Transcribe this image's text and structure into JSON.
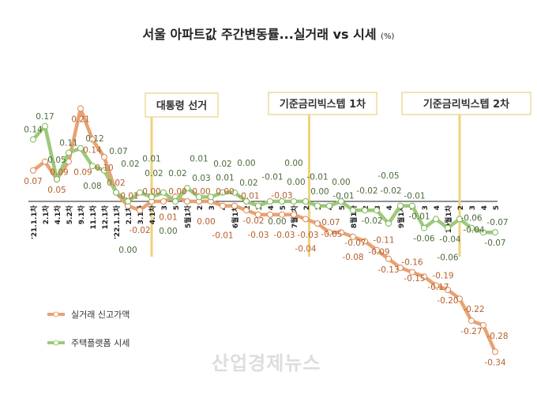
{
  "chart_data": {
    "type": "line",
    "title": "서울 아파트값 주간변동률...실거래 vs 시세",
    "unit": "(%)",
    "categories": [
      "'21.1.1차",
      "2.1차",
      "4.1차",
      "5.2차",
      "9.1차",
      "11.1차",
      "12.1차",
      "'22.1.1차",
      "2.1차",
      "3.1차",
      "4.1차",
      "3",
      "5",
      "5월1차",
      "2",
      "3",
      "4",
      "6월1차",
      "2",
      "3",
      "4",
      "5",
      "7월1차",
      "2",
      "3",
      "4",
      "5",
      "8월1차",
      "2",
      "3",
      "4",
      "9월1차",
      "2",
      "3",
      "4",
      "10월1차",
      "2",
      "3",
      "4",
      "5"
    ],
    "series": [
      {
        "name": "실거래 신고가액",
        "color": "#e9a272",
        "values": [
          0.07,
          0.09,
          0.05,
          0.09,
          0.21,
          0.14,
          0.1,
          0.02,
          -0.01,
          -0.02,
          0.0,
          0.0,
          0.01,
          0.0,
          0.0,
          0.0,
          -0.01,
          -0.01,
          -0.02,
          -0.03,
          -0.03,
          -0.03,
          -0.03,
          -0.04,
          -0.05,
          -0.07,
          -0.07,
          -0.08,
          -0.09,
          -0.11,
          -0.13,
          -0.15,
          -0.16,
          -0.17,
          -0.19,
          -0.2,
          -0.22,
          -0.27,
          -0.28,
          -0.34
        ]
      },
      {
        "name": "주택플랫폼 시세",
        "color": "#9cc97a",
        "values": [
          0.14,
          0.17,
          0.05,
          0.11,
          0.12,
          0.08,
          0.07,
          0.02,
          0.0,
          0.02,
          0.01,
          0.02,
          0.0,
          0.03,
          0.01,
          0.01,
          0.02,
          0.02,
          0.0,
          -0.01,
          0.0,
          0.0,
          0.0,
          0.0,
          -0.01,
          -0.01,
          0.0,
          -0.02,
          -0.02,
          -0.02,
          -0.05,
          -0.01,
          -0.01,
          -0.06,
          -0.04,
          -0.06,
          -0.04,
          -0.06,
          -0.07,
          -0.07
        ]
      }
    ],
    "events": [
      {
        "label": "대통령 선거",
        "category_index": 10
      },
      {
        "label": "기준금리빅스텝 1차",
        "category_index": 23.3
      },
      {
        "label": "기준금리빅스텝 2차",
        "category_index": 36
      }
    ],
    "legend_position": "bottom-left",
    "grid": false
  },
  "watermark": "산업경제뉴스"
}
